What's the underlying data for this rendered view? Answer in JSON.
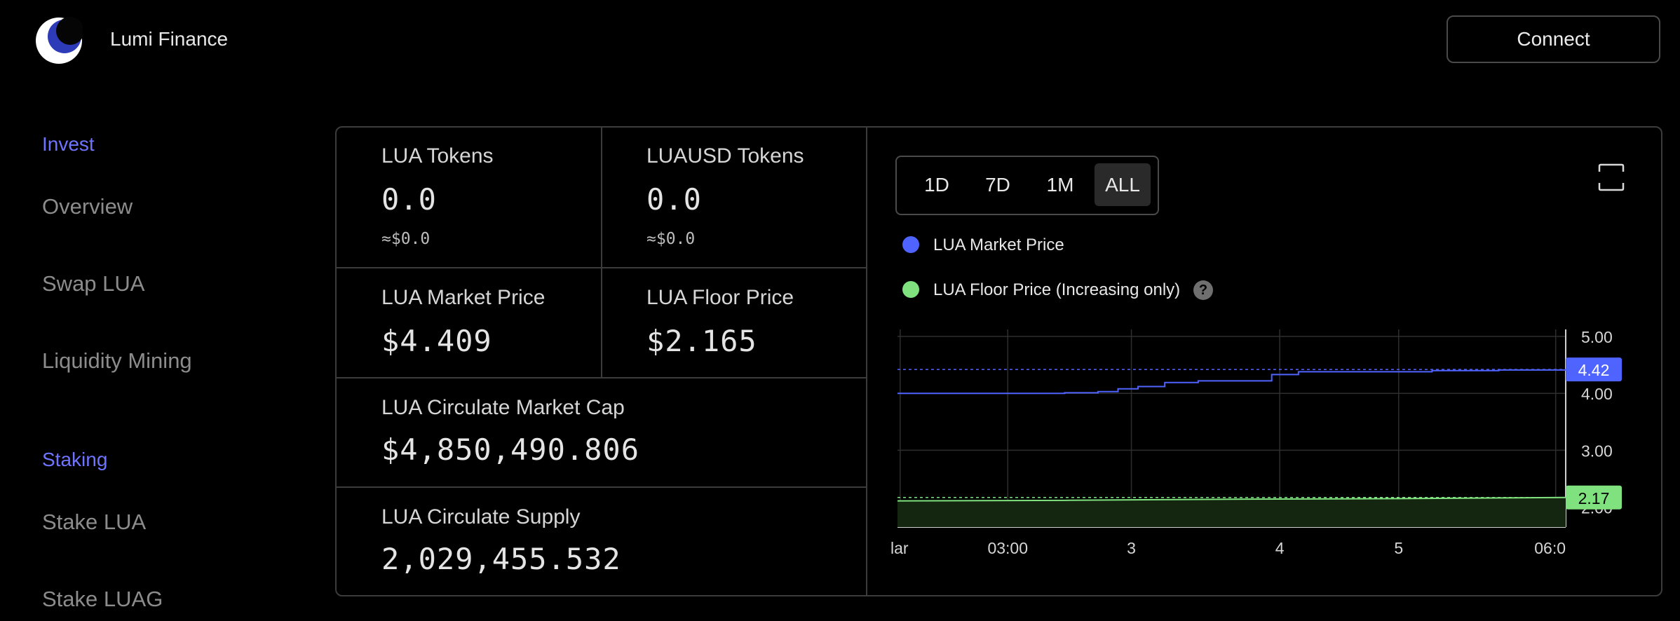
{
  "header": {
    "brand": "Lumi Finance",
    "connect_label": "Connect"
  },
  "sidebar": {
    "sections": [
      {
        "title": "Invest",
        "items": [
          "Overview",
          "Swap LUA",
          "Liquidity Mining"
        ]
      },
      {
        "title": "Staking",
        "items": [
          "Stake LUA",
          "Stake LUAG"
        ]
      }
    ]
  },
  "stats": {
    "lua_tokens": {
      "label": "LUA Tokens",
      "value": "0.0",
      "sub": "≈$0.0"
    },
    "luausd_tokens": {
      "label": "LUAUSD Tokens",
      "value": "0.0",
      "sub": "≈$0.0"
    },
    "market_price": {
      "label": "LUA Market Price",
      "value": "$4.409"
    },
    "floor_price": {
      "label": "LUA Floor Price",
      "value": "$2.165"
    },
    "market_cap": {
      "label": "LUA Circulate Market Cap",
      "value": "$4,850,490.806"
    },
    "supply": {
      "label": "LUA Circulate Supply",
      "value": "2,029,455.532"
    }
  },
  "chart_controls": {
    "ranges": [
      "1D",
      "7D",
      "1M",
      "ALL"
    ],
    "active_range": "ALL",
    "fullscreen_icon": "fullscreen-icon",
    "help_icon": "?"
  },
  "colors": {
    "accent": "#6f74ff",
    "market_line": "#4f63ff",
    "floor_line": "#7fe27f",
    "border": "#3c3c3c"
  },
  "chart_data": {
    "type": "line",
    "x_tick_labels": [
      "lar",
      "03:00",
      "3",
      "4",
      "5",
      "06:0"
    ],
    "y_tick_labels": [
      "5.00",
      "4.00",
      "3.00",
      "2.00"
    ],
    "ylim": [
      1.65,
      5.0
    ],
    "grid": true,
    "legend_position": "top-left",
    "series": [
      {
        "name": "LUA Market Price",
        "color": "#4f63ff",
        "last_value_label": "4.42",
        "x": [
          0,
          0.08,
          0.17,
          0.25,
          0.3,
          0.33,
          0.36,
          0.4,
          0.45,
          0.52,
          0.56,
          0.6,
          0.7,
          0.8,
          0.9,
          1.0
        ],
        "values": [
          4.0,
          4.0,
          4.0,
          4.01,
          4.03,
          4.08,
          4.12,
          4.19,
          4.22,
          4.22,
          4.33,
          4.38,
          4.38,
          4.4,
          4.41,
          4.42
        ]
      },
      {
        "name": "LUA Floor Price (Increasing only)",
        "color": "#7fe27f",
        "last_value_label": "2.17",
        "x": [
          0,
          0.25,
          0.5,
          0.75,
          1.0
        ],
        "values": [
          2.11,
          2.12,
          2.14,
          2.15,
          2.17
        ]
      }
    ]
  }
}
